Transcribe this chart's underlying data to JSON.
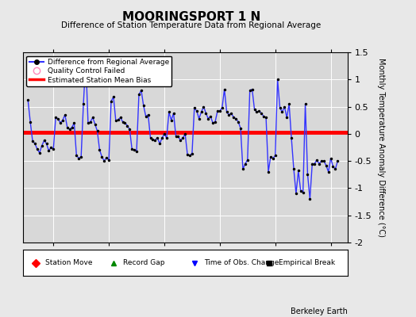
{
  "title": "MOORINGSPORT 1 N",
  "subtitle": "Difference of Station Temperature Data from Regional Average",
  "ylabel_right": "Monthly Temperature Anomaly Difference (°C)",
  "ylim": [
    -2,
    1.5
  ],
  "yticks": [
    -2,
    -1.5,
    -1,
    -0.5,
    0,
    0.5,
    1,
    1.5
  ],
  "xlim_start": 2002.9,
  "xlim_end": 2014.6,
  "xticks": [
    2004,
    2006,
    2008,
    2010,
    2012,
    2014
  ],
  "bias_value": 0.02,
  "background_color": "#e8e8e8",
  "plot_bg_color": "#d8d8d8",
  "grid_color": "#ffffff",
  "line_color": "#3333ff",
  "marker_color": "#000000",
  "bias_color": "#ff0000",
  "berkeley_earth_text": "Berkeley Earth",
  "data_x": [
    2003.083,
    2003.167,
    2003.25,
    2003.333,
    2003.417,
    2003.5,
    2003.583,
    2003.667,
    2003.75,
    2003.833,
    2003.917,
    2004.0,
    2004.083,
    2004.167,
    2004.25,
    2004.333,
    2004.417,
    2004.5,
    2004.583,
    2004.667,
    2004.75,
    2004.833,
    2004.917,
    2005.0,
    2005.083,
    2005.167,
    2005.25,
    2005.333,
    2005.417,
    2005.5,
    2005.583,
    2005.667,
    2005.75,
    2005.833,
    2005.917,
    2006.0,
    2006.083,
    2006.167,
    2006.25,
    2006.333,
    2006.417,
    2006.5,
    2006.583,
    2006.667,
    2006.75,
    2006.833,
    2006.917,
    2007.0,
    2007.083,
    2007.167,
    2007.25,
    2007.333,
    2007.417,
    2007.5,
    2007.583,
    2007.667,
    2007.75,
    2007.833,
    2007.917,
    2008.0,
    2008.083,
    2008.167,
    2008.25,
    2008.333,
    2008.417,
    2008.5,
    2008.583,
    2008.667,
    2008.75,
    2008.833,
    2008.917,
    2009.0,
    2009.083,
    2009.167,
    2009.25,
    2009.333,
    2009.417,
    2009.5,
    2009.583,
    2009.667,
    2009.75,
    2009.833,
    2009.917,
    2010.0,
    2010.083,
    2010.167,
    2010.25,
    2010.333,
    2010.417,
    2010.5,
    2010.583,
    2010.667,
    2010.75,
    2010.833,
    2010.917,
    2011.0,
    2011.083,
    2011.167,
    2011.25,
    2011.333,
    2011.417,
    2011.5,
    2011.583,
    2011.667,
    2011.75,
    2011.833,
    2011.917,
    2012.0,
    2012.083,
    2012.167,
    2012.25,
    2012.333,
    2012.417,
    2012.5,
    2012.583,
    2012.667,
    2012.75,
    2012.833,
    2012.917,
    2013.0,
    2013.083,
    2013.167,
    2013.25,
    2013.333,
    2013.417,
    2013.5,
    2013.583,
    2013.667,
    2013.75,
    2013.833,
    2013.917,
    2014.0,
    2014.083,
    2014.167,
    2014.25
  ],
  "data_y": [
    0.62,
    0.22,
    -0.13,
    -0.18,
    -0.28,
    -0.35,
    -0.22,
    -0.12,
    -0.18,
    -0.31,
    -0.25,
    -0.28,
    0.3,
    0.28,
    0.2,
    0.25,
    0.35,
    0.12,
    0.08,
    0.12,
    0.2,
    -0.4,
    -0.45,
    -0.42,
    0.55,
    1.35,
    0.2,
    0.22,
    0.3,
    0.18,
    0.05,
    -0.3,
    -0.42,
    -0.5,
    -0.44,
    -0.48,
    0.6,
    0.68,
    0.24,
    0.26,
    0.3,
    0.22,
    0.2,
    0.15,
    0.08,
    -0.28,
    -0.3,
    -0.32,
    0.72,
    0.8,
    0.52,
    0.32,
    0.35,
    -0.08,
    -0.1,
    -0.12,
    -0.07,
    -0.18,
    -0.08,
    0.0,
    -0.08,
    0.4,
    0.25,
    0.38,
    -0.05,
    -0.05,
    -0.12,
    -0.08,
    0.0,
    -0.38,
    -0.4,
    -0.36,
    0.48,
    0.42,
    0.28,
    0.4,
    0.5,
    0.38,
    0.28,
    0.32,
    0.2,
    0.22,
    0.42,
    0.42,
    0.48,
    0.82,
    0.4,
    0.35,
    0.38,
    0.3,
    0.28,
    0.22,
    0.1,
    -0.65,
    -0.55,
    -0.48,
    0.8,
    0.82,
    0.45,
    0.4,
    0.42,
    0.38,
    0.32,
    0.3,
    -0.7,
    -0.42,
    -0.45,
    -0.4,
    1.0,
    0.48,
    0.4,
    0.5,
    0.3,
    0.55,
    -0.08,
    -0.65,
    -1.1,
    -0.68,
    -1.05,
    -1.08,
    0.55,
    -0.75,
    -1.2,
    -0.55,
    -0.55,
    -0.48,
    -0.55,
    -0.5,
    -0.5,
    -0.58,
    -0.7,
    -0.45,
    -0.6,
    -0.65,
    -0.5
  ]
}
